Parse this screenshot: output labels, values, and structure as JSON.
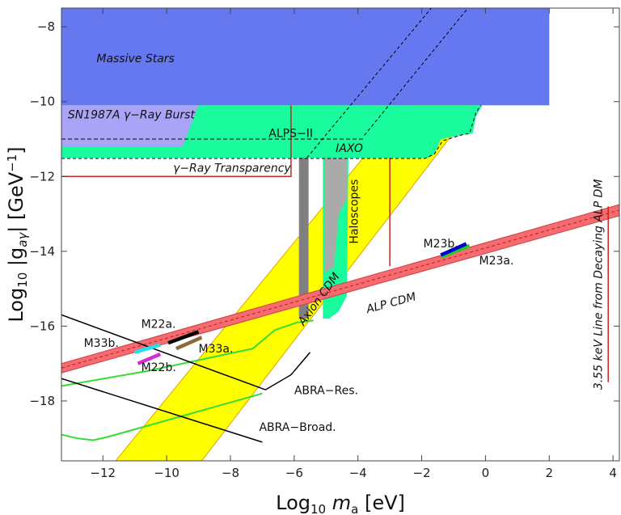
{
  "chart_data": {
    "type": "area",
    "xlim": [
      -13.3,
      4.2
    ],
    "ylim": [
      -19.6,
      -7.5
    ],
    "grid": false,
    "xticks": [
      -12,
      -10,
      -8,
      -6,
      -4,
      -2,
      0,
      2,
      4
    ],
    "yticks": [
      -8,
      -10,
      -12,
      -14,
      -16,
      -18
    ],
    "xticklabels": [
      "−12",
      "−10",
      "−8",
      "−6",
      "−4",
      "−2",
      "0",
      "2",
      "4"
    ],
    "yticklabels": [
      "−8",
      "−10",
      "−12",
      "−14",
      "−16",
      "−18"
    ],
    "xlabel": {
      "prefix": "Log",
      "sub": "10",
      "mid": "m",
      "sub2": "a",
      "suffix": " [eV]"
    },
    "ylabel": {
      "prefix": "Log",
      "sub": "10",
      "mid": " |g",
      "sub2": "aγ",
      "mid2": "| [GeV",
      "sup": "−1",
      "suffix": "]"
    },
    "colors": {
      "massive_stars": "#6678f0",
      "sn1987a": "#aaa4f7",
      "alps_iaxo": "#19fb9c",
      "axion_cdm": "#ffff00",
      "alp_cdm": "#f56b70",
      "haloscope_dark": "#808080",
      "haloscope_light": "#aaaaaa",
      "red_line": "#cc2222",
      "m22a": "#000000",
      "m22b": "#d52bd5",
      "m23a": "#22cc22",
      "m23b": "#0000cc",
      "m33a": "#8b6a3c",
      "m33b": "#22e0f0",
      "abra_res": "#000000",
      "abra_broad": "#33dd33"
    },
    "regions": {
      "massive_stars": [
        [
          -13.3,
          -10.1
        ],
        [
          2.0,
          -10.1
        ],
        [
          2.0,
          -7.5
        ],
        [
          -13.3,
          -7.5
        ]
      ],
      "sn1987a": [
        [
          -13.3,
          -11.2
        ],
        [
          -9.5,
          -11.2
        ],
        [
          -9.0,
          -10.1
        ],
        [
          -13.3,
          -10.1
        ]
      ],
      "alps_iaxo": [
        [
          -13.3,
          -11.5
        ],
        [
          -1.8,
          -11.5
        ],
        [
          -1.6,
          -11.4
        ],
        [
          -1.4,
          -11.0
        ],
        [
          -0.8,
          -10.9
        ],
        [
          -0.4,
          -10.85
        ],
        [
          -0.3,
          -10.4
        ],
        [
          -0.1,
          -10.1
        ],
        [
          -13.3,
          -10.1
        ]
      ],
      "haloscope_light": [
        [
          -5.1,
          -11.5
        ],
        [
          -4.3,
          -11.5
        ],
        [
          -4.35,
          -15.2
        ],
        [
          -4.6,
          -15.6
        ],
        [
          -4.9,
          -15.8
        ],
        [
          -5.1,
          -15.8
        ]
      ],
      "haloscope_gray": [
        [
          -5.05,
          -11.5
        ],
        [
          -4.35,
          -11.5
        ],
        [
          -4.35,
          -12.6
        ],
        [
          -4.6,
          -13.0
        ],
        [
          -4.75,
          -14.4
        ],
        [
          -5.05,
          -14.6
        ]
      ],
      "haloscope_dark": [
        [
          -5.85,
          -11.5
        ],
        [
          -5.55,
          -11.5
        ],
        [
          -5.55,
          -15.8
        ],
        [
          -5.85,
          -15.8
        ]
      ],
      "ygamma_boundary": [
        [
          -13.3,
          -12.0
        ],
        [
          -6.1,
          -12.0
        ],
        [
          -6.1,
          -10.1
        ]
      ],
      "red_vertical": [
        [
          -3.0,
          -11.5
        ],
        [
          -3.0,
          -14.4
        ]
      ],
      "decay_line": [
        [
          3.85,
          -12.8
        ],
        [
          3.85,
          -17.5
        ]
      ]
    },
    "axion_cdm_band": {
      "lower": [
        [
          -8.9,
          -19.6
        ],
        [
          2.0,
          -7.5
        ]
      ],
      "upper": [
        [
          -11.6,
          -19.6
        ],
        [
          0.0,
          -7.5
        ]
      ]
    },
    "alp_cdm_band": {
      "upper": [
        [
          -13.3,
          -17.0
        ],
        [
          4.2,
          -12.75
        ]
      ],
      "lower": [
        [
          -13.3,
          -17.25
        ],
        [
          4.2,
          -13.05
        ]
      ]
    },
    "alp_cdm_dashed": [
      [
        -13.3,
        -17.12
      ],
      [
        4.2,
        -12.9
      ]
    ],
    "alps_ii_line": [
      [
        -13.3,
        -11.0
      ],
      [
        -3.8,
        -11.0
      ]
    ],
    "iaxo_dashed_top": [
      [
        -3.8,
        -10.9
      ],
      [
        -0.55,
        -7.5
      ]
    ],
    "iaxo_dashed_steep": [
      [
        -5.6,
        -11.5
      ],
      [
        -1.7,
        -7.5
      ]
    ],
    "iaxo_dashed_bottom": [
      [
        -13.3,
        -11.52
      ],
      [
        -1.9,
        -11.52
      ],
      [
        -1.6,
        -11.4
      ],
      [
        -1.35,
        -11.05
      ],
      [
        -0.8,
        -10.9
      ],
      [
        -0.5,
        -10.85
      ],
      [
        -0.3,
        -10.3
      ],
      [
        -0.15,
        -10.1
      ]
    ],
    "series": [
      {
        "name": "M22a.",
        "x": [
          -9.95,
          -9.0
        ],
        "y": [
          -16.45,
          -16.15
        ]
      },
      {
        "name": "M22b.",
        "x": [
          -10.9,
          -10.2
        ],
        "y": [
          -17.0,
          -16.75
        ]
      },
      {
        "name": "M23a.",
        "x": [
          -1.4,
          -0.5
        ],
        "y": [
          -14.15,
          -13.85
        ]
      },
      {
        "name": "M23b.",
        "x": [
          -1.4,
          -0.6
        ],
        "y": [
          -14.1,
          -13.8
        ]
      },
      {
        "name": "M33a.",
        "x": [
          -9.7,
          -8.9
        ],
        "y": [
          -16.6,
          -16.3
        ]
      },
      {
        "name": "M33b.",
        "x": [
          -11.0,
          -10.2
        ],
        "y": [
          -16.7,
          -16.5
        ]
      },
      {
        "name": "ABRA−Res.",
        "x": [
          -13.3,
          -6.9,
          -6.1,
          -5.5
        ],
        "y": [
          -15.7,
          -17.7,
          -17.3,
          -16.7
        ]
      },
      {
        "name": "ABRA−Broad.",
        "x": [
          -13.3,
          -12.8,
          -12.3,
          -11.8,
          -7.0
        ],
        "y": [
          -18.9,
          -19.0,
          -19.05,
          -18.95,
          -17.8
        ]
      },
      {
        "name": "Green ABRA-Res.",
        "x": [
          -13.3,
          -10.6,
          -7.3,
          -6.6,
          -5.9,
          -5.4
        ],
        "y": [
          -17.6,
          -17.2,
          -16.6,
          -16.1,
          -15.9,
          -15.85
        ]
      },
      {
        "name": "ABRA-Broad 2",
        "x": [
          -13.3,
          -7.0
        ],
        "y": [
          -17.4,
          -19.1
        ]
      }
    ],
    "labels": {
      "massive_stars": "Massive Stars",
      "sn1987a": "SN1987A γ−Ray Burst",
      "alps_ii": "ALPS−II",
      "iaxo": "IAXO",
      "ygamma": "γ−Ray Transparency",
      "haloscopes": "Haloscopes",
      "axion_cdm": "Axion CDM",
      "alp_cdm": "ALP CDM",
      "m22a": "M22a.",
      "m22b": "M22b.",
      "m23a": "M23a.",
      "m23b": "M23b.",
      "m33a": "M33a.",
      "m33b": "M33b.",
      "abra_res": "ABRA−Res.",
      "abra_broad": "ABRA−Broad.",
      "decay_line": "3.55 keV Line from Decaying ALP DM"
    }
  }
}
